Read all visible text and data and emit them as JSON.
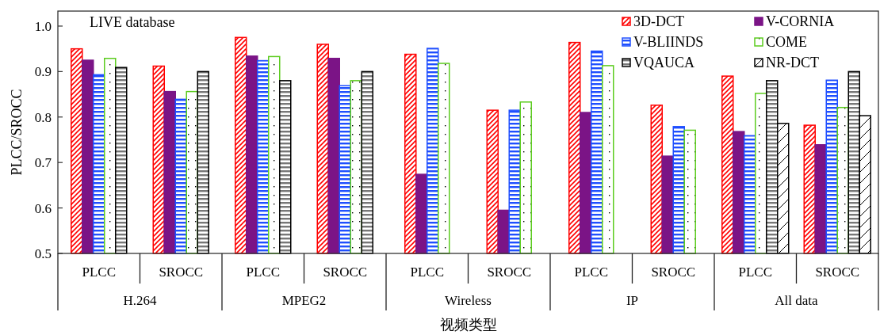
{
  "chart_data": {
    "type": "bar",
    "xlabel": "视频类型",
    "ylabel": "PLCC/SROCC",
    "categories": [
      "PLCC",
      "SROCC",
      "PLCC",
      "SROCC",
      "PLCC",
      "SROCC",
      "PLCC",
      "SROCC",
      "PLCC",
      "SROCC"
    ],
    "series": [
      {
        "name": "3D-DCT",
        "color": "#ff0000",
        "values": [
          0.95,
          0.912,
          0.975,
          0.96,
          0.938,
          0.815,
          0.964,
          0.826,
          0.89,
          0.782
        ]
      },
      {
        "name": "V-CORNIA",
        "color": "#7b1486",
        "values": [
          0.925,
          0.856,
          0.934,
          0.929,
          0.674,
          0.595,
          0.81,
          0.714,
          0.768,
          0.739
        ]
      },
      {
        "name": "V-BLIINDS",
        "color": "#1f4fff",
        "values": [
          0.893,
          0.839,
          0.924,
          0.869,
          0.951,
          0.815,
          0.945,
          0.779,
          0.759,
          0.881
        ]
      },
      {
        "name": "COME",
        "color": "#5ccc1f",
        "values": [
          0.929,
          0.856,
          0.933,
          0.88,
          0.918,
          0.833,
          0.913,
          0.771,
          0.852,
          0.821
        ]
      },
      {
        "name": "VQAUCA",
        "color": "#000000",
        "values": [
          0.909,
          0.9,
          0.88,
          0.9,
          null,
          null,
          null,
          null,
          0.88,
          0.9
        ]
      },
      {
        "name": "NR-DCT",
        "color": "#000000",
        "values": [
          null,
          null,
          null,
          null,
          null,
          null,
          null,
          null,
          0.786,
          0.803
        ]
      }
    ],
    "ylim": [
      0.5,
      1.033
    ],
    "yticks": [
      0.5,
      0.6,
      0.7,
      0.8,
      0.9,
      {
        "value": 1.0,
        "label": "1.0"
      }
    ],
    "legend": "top right",
    "annotations": [
      "LIVE database",
      "H.264",
      "MPEG2",
      "Wireless",
      "IP",
      "All data"
    ]
  }
}
